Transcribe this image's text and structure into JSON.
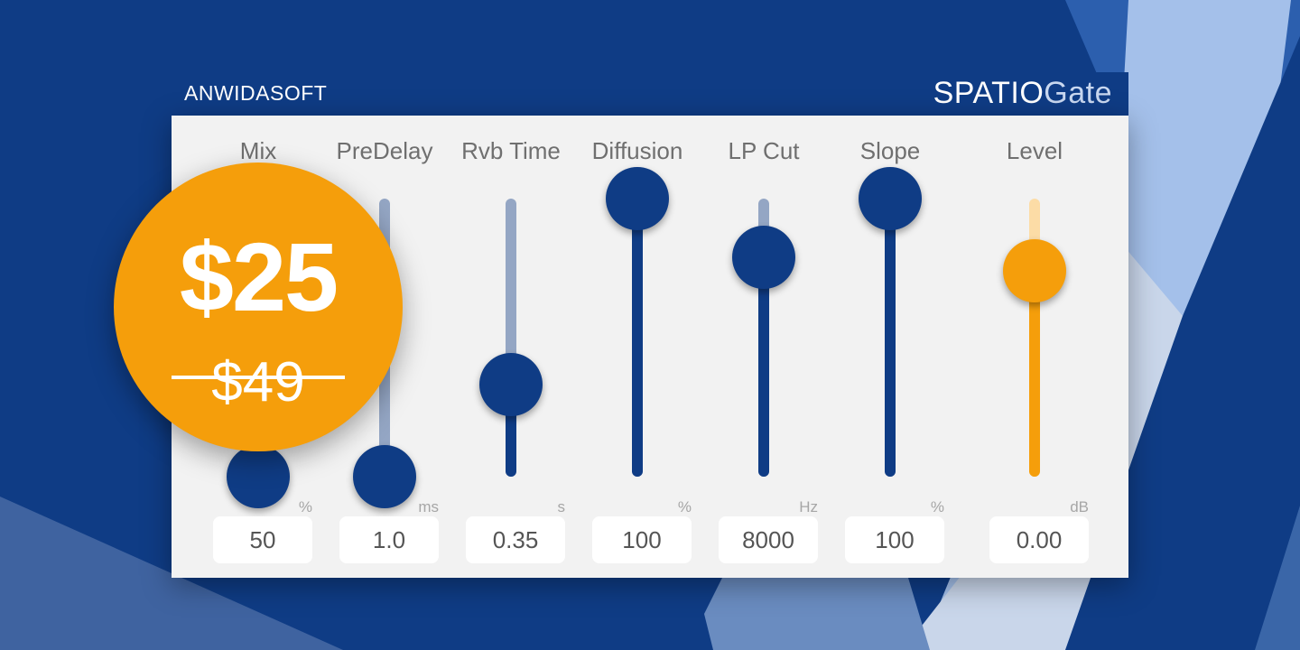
{
  "brand": {
    "logo_text": "ANWIDASOFT"
  },
  "product": {
    "name_bold": "SPATIO",
    "name_light": "Gate"
  },
  "controls": [
    {
      "label": "Mix",
      "value": "50",
      "unit": "%",
      "level": 0.0
    },
    {
      "label": "PreDelay",
      "value": "1.0",
      "unit": "ms",
      "level": 0.0
    },
    {
      "label": "Rvb Time",
      "value": "0.35",
      "unit": "s",
      "level": 0.33
    },
    {
      "label": "Diffusion",
      "value": "100",
      "unit": "%",
      "level": 1.0
    },
    {
      "label": "LP Cut",
      "value": "8000",
      "unit": "Hz",
      "level": 0.79
    },
    {
      "label": "Slope",
      "value": "100",
      "unit": "%",
      "level": 1.0
    },
    {
      "label": "Level",
      "value": "0.00",
      "unit": "dB",
      "level": 0.74
    }
  ],
  "price": {
    "current": "$25",
    "original": "$49"
  },
  "colors": {
    "background": "#0f3c85",
    "panel": "#f2f2f2",
    "slider_dark": "#0f3c85",
    "slider_track": "#94a6c4",
    "accent_orange": "#f59e0b"
  }
}
